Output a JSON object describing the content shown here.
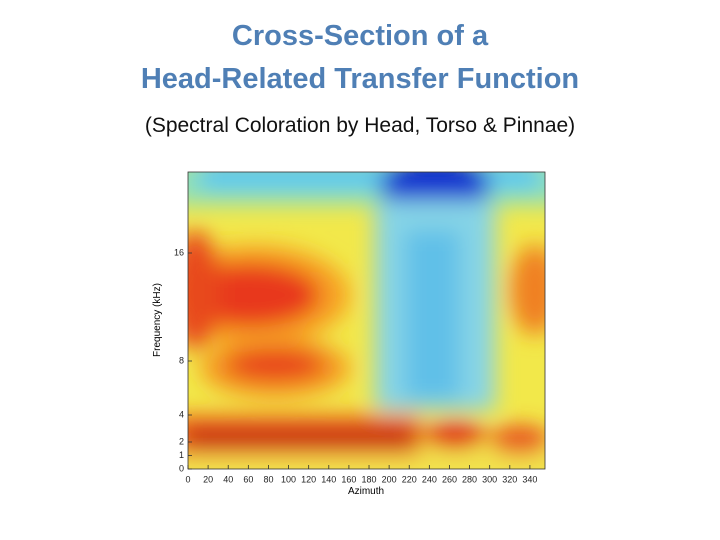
{
  "slide": {
    "title_lines": [
      "Cross-Section of a",
      "Head-Related Transfer Function"
    ],
    "subtitle": "(Spectral Coloration by Head, Torso & Pinnae)"
  },
  "chart_data": {
    "type": "heatmap",
    "xlabel": "Azimuth",
    "ylabel": "Frequency (kHz)",
    "xlim": [
      0,
      355
    ],
    "ylim": [
      0,
      22
    ],
    "xticks": [
      0,
      20,
      40,
      60,
      80,
      100,
      120,
      140,
      160,
      180,
      200,
      220,
      240,
      260,
      280,
      300,
      320,
      340
    ],
    "yticks": [
      0,
      1,
      2,
      4,
      8,
      16
    ]
  }
}
